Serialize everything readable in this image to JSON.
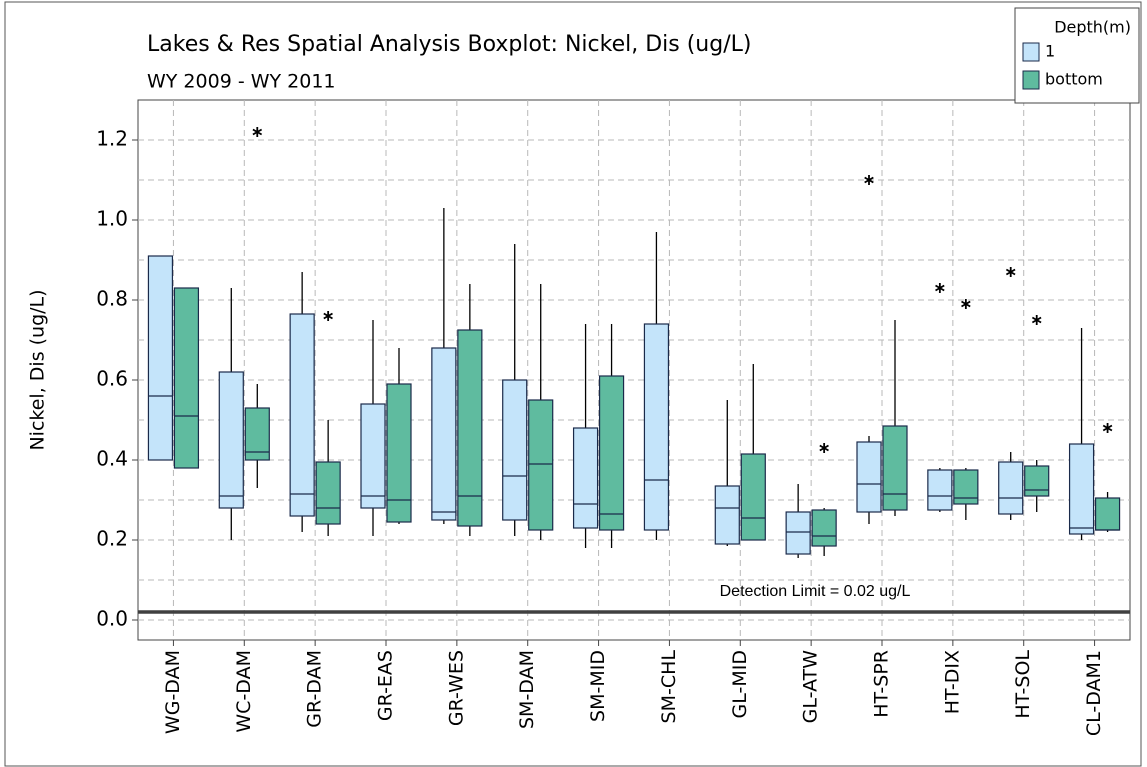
{
  "chart_data": {
    "type": "boxplot",
    "title": "Lakes & Res Spatial Analysis Boxplot: Nickel, Dis (ug/L)",
    "subtitle": "WY 2009 - WY 2011",
    "y_label": "Nickel, Dis (ug/L)",
    "legend_title": "Depth(m)",
    "legend_position": "top-right",
    "grid": true,
    "categories": [
      "WG-DAM",
      "WC-DAM",
      "GR-DAM",
      "GR-EAS",
      "GR-WES",
      "SM-DAM",
      "SM-MID",
      "SM-CHL",
      "GL-MID",
      "GL-ATW",
      "HT-SPR",
      "HT-DIX",
      "HT-SOL",
      "CL-DAM1"
    ],
    "ylim": [
      -0.05,
      1.3
    ],
    "yticks": [
      {
        "value": 0,
        "label": "0.0"
      },
      0.2,
      0.4,
      0.6,
      0.8,
      {
        "value": 1,
        "label": "1.0"
      },
      1.2
    ],
    "minor_yticks": [
      0.1,
      0.3,
      0.5,
      0.7,
      0.9,
      1.1
    ],
    "reference_line": {
      "value": 0.02,
      "label": "Detection Limit = 0.02 ug/L",
      "color": "#404040"
    },
    "series": [
      {
        "name": "1",
        "color": "#c4e4fa",
        "whislo": [
          0.4,
          0.2,
          0.22,
          0.21,
          0.24,
          0.21,
          0.18,
          0.2,
          0.185,
          0.155,
          0.24,
          0.27,
          0.25,
          0.2
        ],
        "q1": [
          0.4,
          0.28,
          0.26,
          0.28,
          0.25,
          0.25,
          0.23,
          0.225,
          0.19,
          0.165,
          0.27,
          0.275,
          0.265,
          0.215
        ],
        "median": [
          0.56,
          0.31,
          0.315,
          0.31,
          0.27,
          0.36,
          0.29,
          0.35,
          0.28,
          0.22,
          0.34,
          0.31,
          0.305,
          0.23
        ],
        "q3": [
          0.91,
          0.62,
          0.765,
          0.54,
          0.68,
          0.6,
          0.48,
          0.74,
          0.335,
          0.27,
          0.445,
          0.375,
          0.395,
          0.44
        ],
        "whishi": [
          0.91,
          0.83,
          0.87,
          0.75,
          1.03,
          0.94,
          0.74,
          0.97,
          0.55,
          0.34,
          0.46,
          0.38,
          0.42,
          0.73
        ],
        "outliers": [
          [],
          [],
          [],
          [],
          [],
          [],
          [],
          [],
          [],
          [],
          [
            1.1
          ],
          [
            0.83
          ],
          [
            0.87
          ],
          []
        ]
      },
      {
        "name": "bottom",
        "color": "#5fbb9f",
        "whislo": [
          0.38,
          0.33,
          0.21,
          0.24,
          0.21,
          0.2,
          0.18,
          null,
          0.2,
          0.16,
          0.26,
          0.25,
          0.27,
          0.22
        ],
        "q1": [
          0.38,
          0.4,
          0.24,
          0.245,
          0.235,
          0.225,
          0.225,
          null,
          0.2,
          0.185,
          0.275,
          0.29,
          0.31,
          0.225
        ],
        "median": [
          0.51,
          0.42,
          0.28,
          0.3,
          0.31,
          0.39,
          0.265,
          null,
          0.255,
          0.21,
          0.315,
          0.305,
          0.325,
          0.225
        ],
        "q3": [
          0.83,
          0.53,
          0.395,
          0.59,
          0.725,
          0.55,
          0.61,
          null,
          0.415,
          0.275,
          0.485,
          0.375,
          0.385,
          0.305
        ],
        "whishi": [
          0.83,
          0.59,
          0.5,
          0.68,
          0.84,
          0.84,
          0.74,
          null,
          0.64,
          0.28,
          0.75,
          0.38,
          0.4,
          0.32
        ],
        "outliers": [
          [],
          [
            1.22
          ],
          [
            0.76
          ],
          [],
          [],
          [],
          [],
          [],
          [],
          [
            0.43
          ],
          [],
          [
            0.79
          ],
          [
            0.75
          ],
          [
            0.48
          ]
        ]
      }
    ]
  }
}
